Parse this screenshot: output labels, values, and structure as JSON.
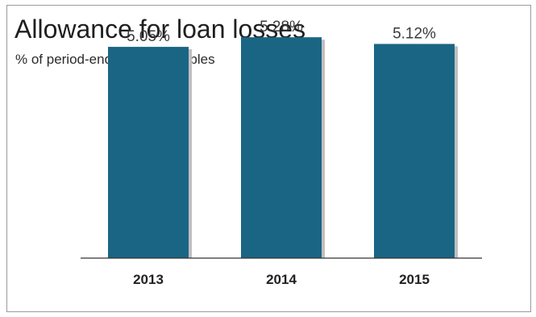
{
  "chart_data": {
    "type": "bar",
    "title": "Allowance for loan losses",
    "subtitle": "% of period-end loan receivables",
    "categories": [
      "2013",
      "2014",
      "2015"
    ],
    "values": [
      5.05,
      5.28,
      5.12
    ],
    "data_labels": [
      "5.05%",
      "5.28%",
      "5.12%"
    ],
    "xlabel": "",
    "ylabel": "",
    "ylim": [
      0,
      5.9
    ],
    "grid": false,
    "legend": "none",
    "bar_color": "#1a6584",
    "axis_color": "#333333"
  }
}
